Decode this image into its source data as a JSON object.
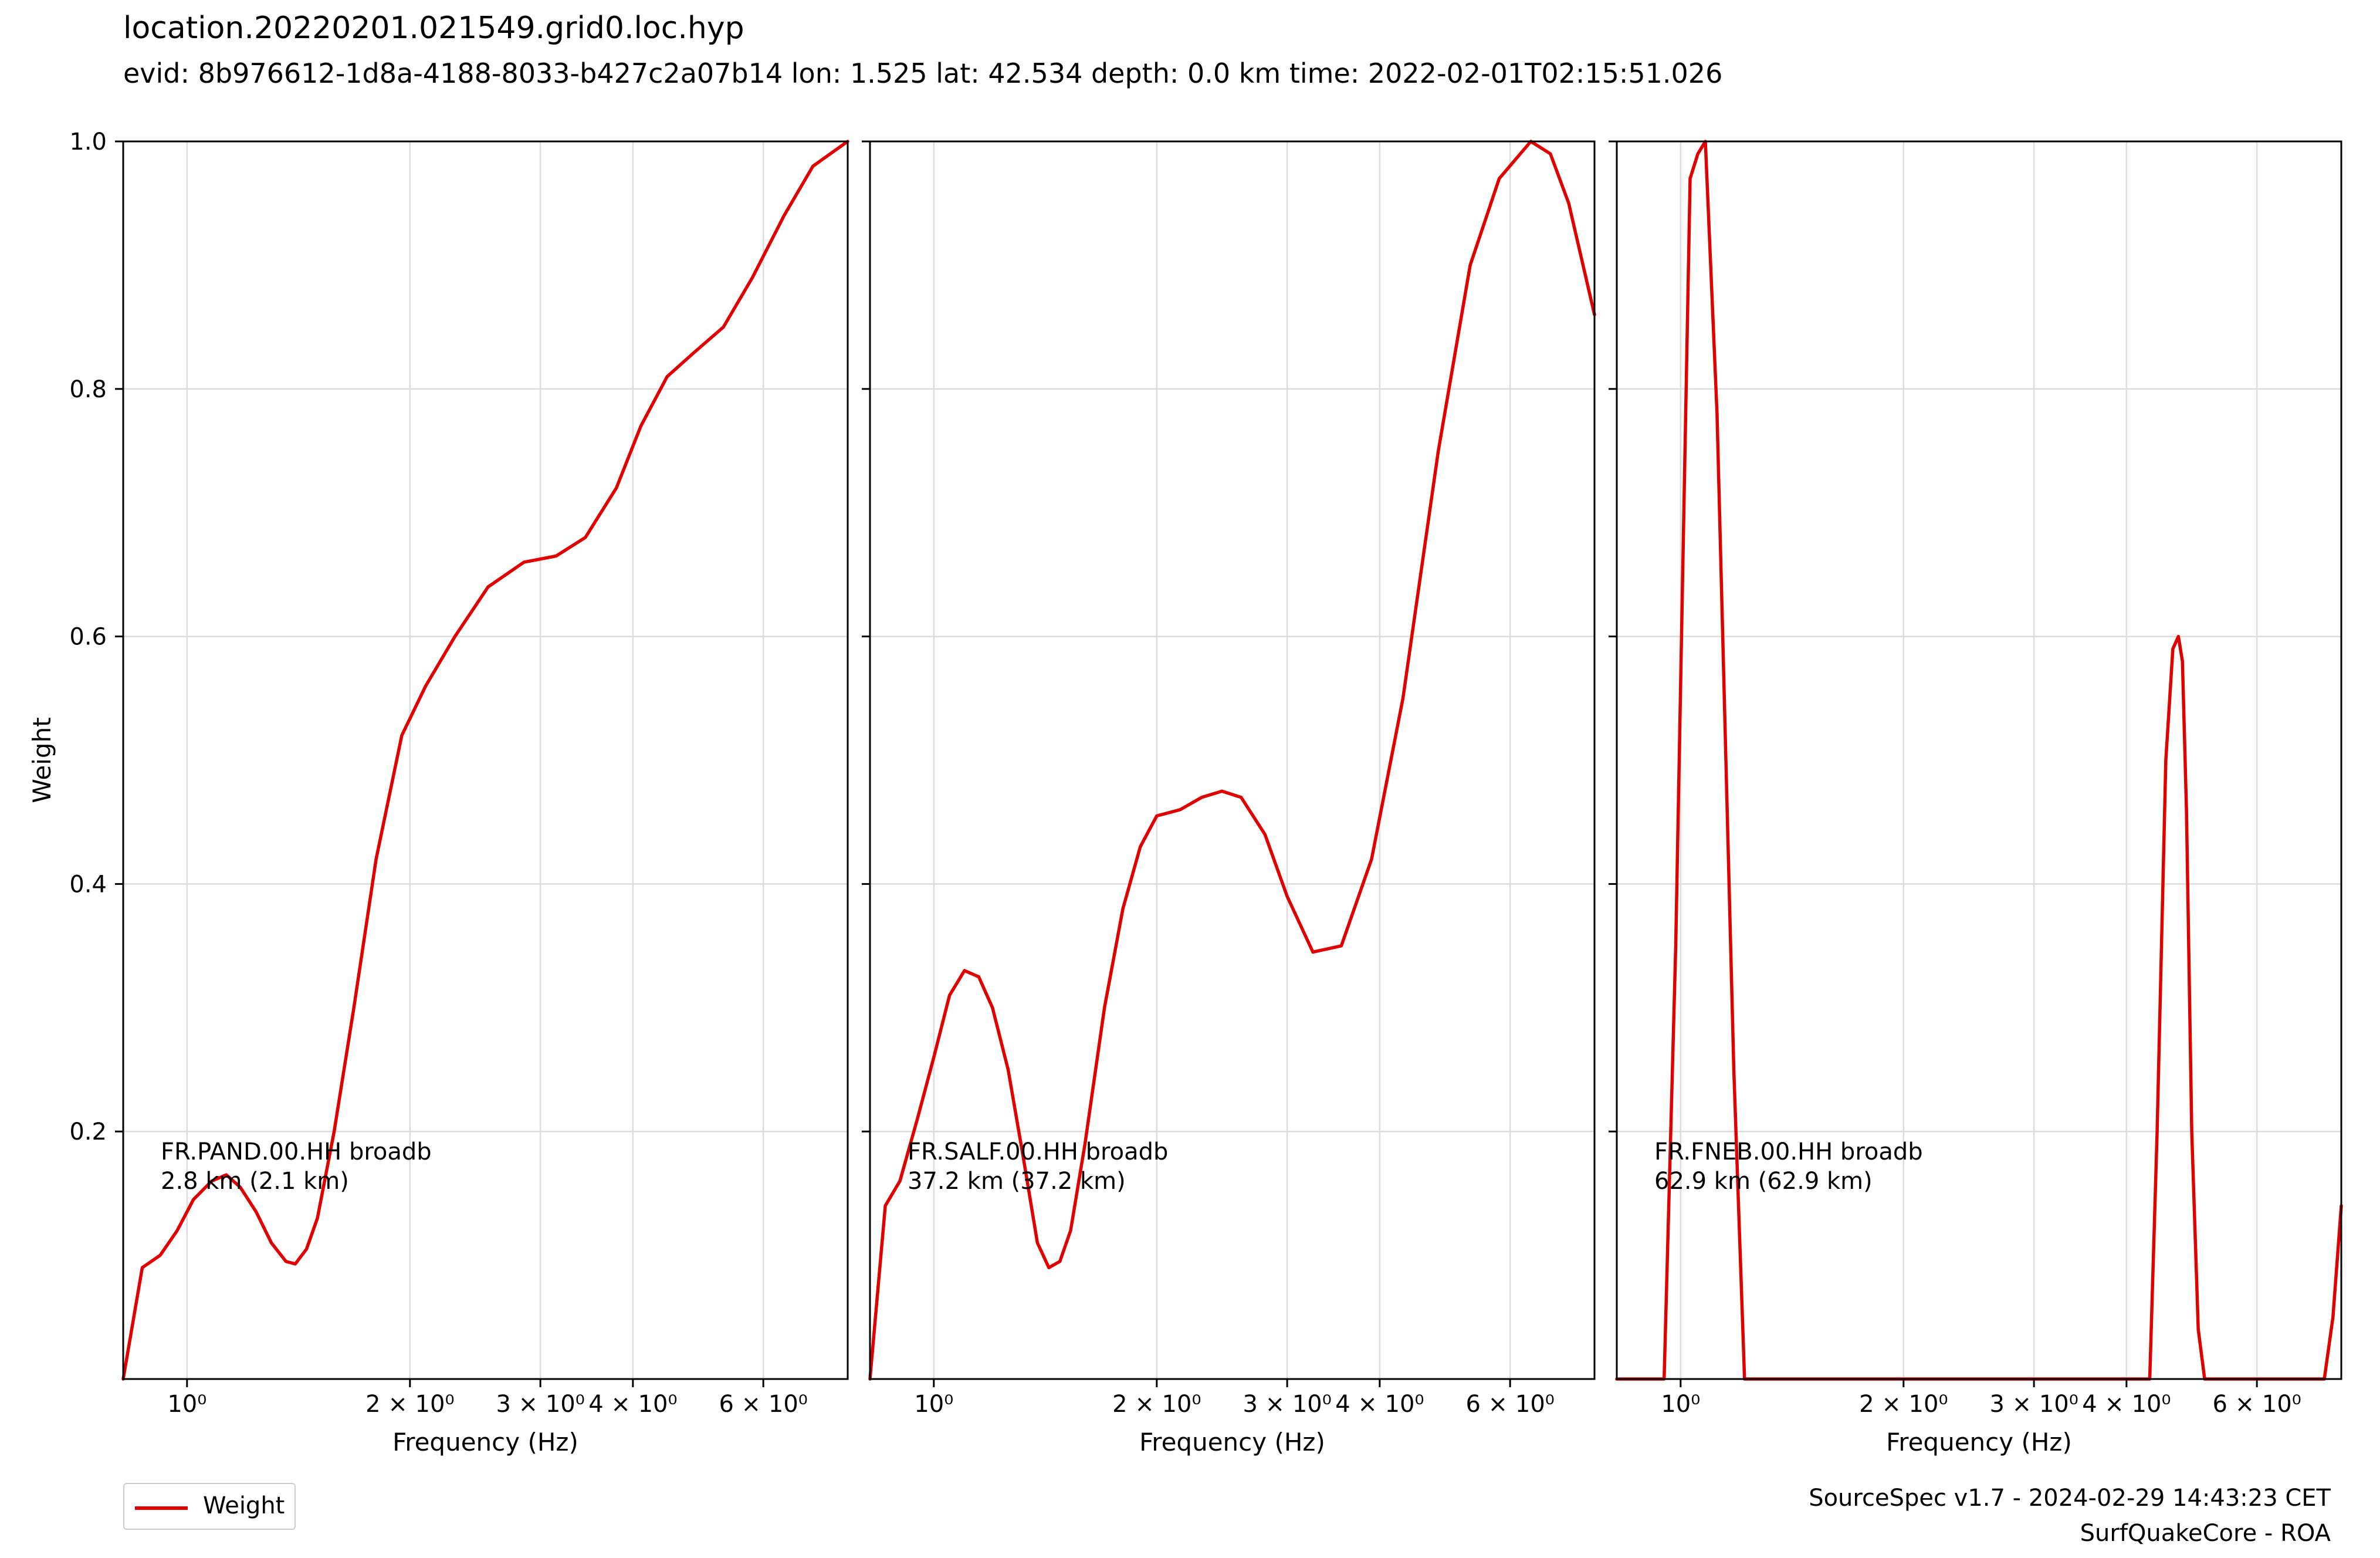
{
  "title": "location.20220201.021549.grid0.loc.hyp",
  "subtitle": "evid: 8b976612-1d8a-4188-8033-b427c2a07b14 lon: 1.525 lat: 42.534 depth: 0.0 km time: 2022-02-01T02:15:51.026",
  "footer": {
    "line1": "SourceSpec v1.7 - 2024-02-29 14:43:23 CET",
    "line2": "SurfQuakeCore - ROA"
  },
  "legend": {
    "label": "Weight",
    "color": "#e00000"
  },
  "chart_data": [
    {
      "type": "line",
      "station": "FR.PAND.00.HH broadb",
      "distance": "2.8 km (2.1 km)",
      "xlabel": "Frequency (Hz)",
      "ylabel": "Weight",
      "xscale": "log",
      "xlim": [
        0.82,
        7.8
      ],
      "ylim": [
        0.0,
        1.0
      ],
      "xticks": [
        {
          "value": 1,
          "label": "10⁰"
        },
        {
          "value": 2,
          "label": "2 × 10⁰"
        },
        {
          "value": 3,
          "label": "3 × 10⁰"
        },
        {
          "value": 4,
          "label": "4 × 10⁰"
        },
        {
          "value": 6,
          "label": "6 × 10⁰"
        }
      ],
      "yticks": [
        0.2,
        0.4,
        0.6,
        0.8,
        1.0
      ],
      "grid": true,
      "series": [
        {
          "name": "Weight",
          "x": [
            0.82,
            0.87,
            0.92,
            0.97,
            1.02,
            1.08,
            1.13,
            1.18,
            1.24,
            1.3,
            1.36,
            1.4,
            1.45,
            1.5,
            1.58,
            1.68,
            1.8,
            1.95,
            2.1,
            2.3,
            2.55,
            2.85,
            3.15,
            3.45,
            3.8,
            4.1,
            4.45,
            4.85,
            5.3,
            5.8,
            6.4,
            7.0,
            7.8
          ],
          "y": [
            0.0,
            0.09,
            0.1,
            0.12,
            0.145,
            0.16,
            0.165,
            0.155,
            0.135,
            0.11,
            0.095,
            0.093,
            0.105,
            0.13,
            0.2,
            0.3,
            0.42,
            0.52,
            0.56,
            0.6,
            0.64,
            0.66,
            0.665,
            0.68,
            0.72,
            0.77,
            0.81,
            0.83,
            0.85,
            0.89,
            0.94,
            0.98,
            1.0
          ]
        }
      ]
    },
    {
      "type": "line",
      "station": "FR.SALF.00.HH broadb",
      "distance": "37.2 km (37.2 km)",
      "xlabel": "Frequency (Hz)",
      "xscale": "log",
      "xlim": [
        0.82,
        7.8
      ],
      "ylim": [
        0.0,
        1.0
      ],
      "xticks": [
        {
          "value": 1,
          "label": "10⁰"
        },
        {
          "value": 2,
          "label": "2 × 10⁰"
        },
        {
          "value": 3,
          "label": "3 × 10⁰"
        },
        {
          "value": 4,
          "label": "4 × 10⁰"
        },
        {
          "value": 6,
          "label": "6 × 10⁰"
        }
      ],
      "yticks": [
        0.2,
        0.4,
        0.6,
        0.8,
        1.0
      ],
      "grid": true,
      "series": [
        {
          "name": "Weight",
          "x": [
            0.82,
            0.86,
            0.9,
            0.95,
            1.0,
            1.05,
            1.1,
            1.15,
            1.2,
            1.26,
            1.32,
            1.38,
            1.43,
            1.48,
            1.53,
            1.6,
            1.7,
            1.8,
            1.9,
            2.0,
            2.15,
            2.3,
            2.45,
            2.6,
            2.8,
            3.0,
            3.25,
            3.55,
            3.9,
            4.3,
            4.8,
            5.3,
            5.8,
            6.4,
            6.8,
            7.2,
            7.8
          ],
          "y": [
            0.0,
            0.14,
            0.16,
            0.21,
            0.26,
            0.31,
            0.33,
            0.325,
            0.3,
            0.25,
            0.18,
            0.11,
            0.09,
            0.095,
            0.12,
            0.19,
            0.3,
            0.38,
            0.43,
            0.455,
            0.46,
            0.47,
            0.475,
            0.47,
            0.44,
            0.39,
            0.345,
            0.35,
            0.42,
            0.55,
            0.75,
            0.9,
            0.97,
            1.0,
            0.99,
            0.95,
            0.86
          ]
        }
      ]
    },
    {
      "type": "line",
      "station": "FR.FNEB.00.HH broadb",
      "distance": "62.9 km (62.9 km)",
      "xlabel": "Frequency (Hz)",
      "xscale": "log",
      "xlim": [
        0.82,
        7.8
      ],
      "ylim": [
        0.0,
        1.0
      ],
      "xticks": [
        {
          "value": 1,
          "label": "10⁰"
        },
        {
          "value": 2,
          "label": "2 × 10⁰"
        },
        {
          "value": 3,
          "label": "3 × 10⁰"
        },
        {
          "value": 4,
          "label": "4 × 10⁰"
        },
        {
          "value": 6,
          "label": "6 × 10⁰"
        }
      ],
      "yticks": [
        0.2,
        0.4,
        0.6,
        0.8,
        1.0
      ],
      "grid": true,
      "series": [
        {
          "name": "Weight",
          "x": [
            0.82,
            0.95,
            0.985,
            1.01,
            1.03,
            1.055,
            1.08,
            1.12,
            1.18,
            1.22,
            4.3,
            4.4,
            4.52,
            4.62,
            4.7,
            4.76,
            4.82,
            4.9,
            5.0,
            5.1,
            7.4,
            7.6,
            7.8
          ],
          "y": [
            0.0,
            0.0,
            0.35,
            0.7,
            0.97,
            0.99,
            1.0,
            0.78,
            0.25,
            0.0,
            0.0,
            0.2,
            0.5,
            0.59,
            0.6,
            0.58,
            0.46,
            0.2,
            0.04,
            0.0,
            0.0,
            0.05,
            0.14
          ]
        }
      ]
    }
  ]
}
